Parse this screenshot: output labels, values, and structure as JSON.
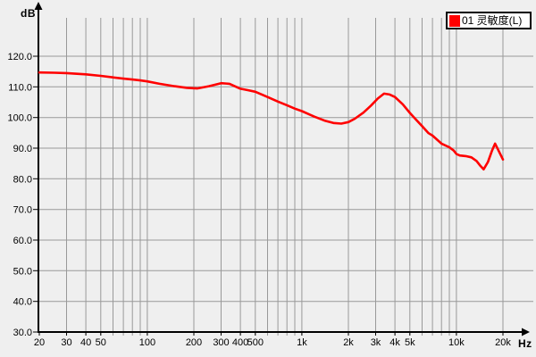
{
  "axis_units": {
    "y": "dB",
    "x": "Hz"
  },
  "legend": {
    "label": "01 灵敏度(L)",
    "swatch_color": "#ff0000"
  },
  "colors": {
    "background": "#efefef",
    "gridline": "#999999",
    "axis": "#000000",
    "curve": "#ff0000",
    "legend_background": "#ffffff",
    "legend_border": "#000000"
  },
  "chart_data": {
    "type": "line",
    "title": "",
    "xlabel": "Hz",
    "ylabel": "dB",
    "x_scale": "log",
    "xlim": [
      20,
      20000
    ],
    "ylim": [
      30,
      125
    ],
    "grid": true,
    "legend_position": "top-right",
    "y_ticks": [
      {
        "v": 120,
        "label": "120.0"
      },
      {
        "v": 110,
        "label": "110.0"
      },
      {
        "v": 100,
        "label": "100.0"
      },
      {
        "v": 90,
        "label": "90.0"
      },
      {
        "v": 80,
        "label": "80.0"
      },
      {
        "v": 70,
        "label": "70.0"
      },
      {
        "v": 60,
        "label": "60.0"
      },
      {
        "v": 50,
        "label": "50.0"
      },
      {
        "v": 40,
        "label": "40.0"
      },
      {
        "v": 30,
        "label": "30.0"
      }
    ],
    "x_ticks": [
      {
        "v": 20,
        "label": "20"
      },
      {
        "v": 30,
        "label": "30"
      },
      {
        "v": 40,
        "label": "40"
      },
      {
        "v": 50,
        "label": "50"
      },
      {
        "v": 100,
        "label": "100"
      },
      {
        "v": 200,
        "label": "200"
      },
      {
        "v": 300,
        "label": "300"
      },
      {
        "v": 400,
        "label": "400"
      },
      {
        "v": 500,
        "label": "500"
      },
      {
        "v": 1000,
        "label": "1k"
      },
      {
        "v": 2000,
        "label": "2k"
      },
      {
        "v": 3000,
        "label": "3k"
      },
      {
        "v": 4000,
        "label": "4k"
      },
      {
        "v": 5000,
        "label": "5k"
      },
      {
        "v": 10000,
        "label": "10k"
      },
      {
        "v": 20000,
        "label": "20k"
      }
    ],
    "x_gridlines": [
      30,
      40,
      50,
      60,
      70,
      80,
      90,
      100,
      200,
      300,
      400,
      500,
      600,
      700,
      800,
      900,
      1000,
      2000,
      3000,
      4000,
      5000,
      6000,
      7000,
      8000,
      9000,
      10000,
      20000
    ],
    "y_gridlines": [
      40,
      50,
      60,
      70,
      80,
      90,
      100,
      110,
      120
    ],
    "series": [
      {
        "name": "01 灵敏度(L)",
        "color": "#ff0000",
        "points": [
          [
            20,
            114.7
          ],
          [
            25,
            114.6
          ],
          [
            30,
            114.5
          ],
          [
            40,
            114.1
          ],
          [
            50,
            113.6
          ],
          [
            60,
            113.1
          ],
          [
            70,
            112.7
          ],
          [
            80,
            112.4
          ],
          [
            90,
            112.1
          ],
          [
            100,
            111.8
          ],
          [
            120,
            111.0
          ],
          [
            150,
            110.2
          ],
          [
            180,
            109.7
          ],
          [
            210,
            109.5
          ],
          [
            250,
            110.2
          ],
          [
            300,
            111.2
          ],
          [
            340,
            111.0
          ],
          [
            400,
            109.4
          ],
          [
            450,
            108.9
          ],
          [
            500,
            108.4
          ],
          [
            600,
            106.7
          ],
          [
            700,
            105.2
          ],
          [
            800,
            104.0
          ],
          [
            900,
            102.9
          ],
          [
            1000,
            102.1
          ],
          [
            1200,
            100.3
          ],
          [
            1400,
            99.0
          ],
          [
            1600,
            98.2
          ],
          [
            1800,
            98.0
          ],
          [
            2000,
            98.5
          ],
          [
            2200,
            99.6
          ],
          [
            2500,
            101.6
          ],
          [
            2800,
            103.9
          ],
          [
            3100,
            106.2
          ],
          [
            3400,
            107.8
          ],
          [
            3700,
            107.5
          ],
          [
            4000,
            106.7
          ],
          [
            4500,
            104.3
          ],
          [
            5000,
            101.5
          ],
          [
            5500,
            99.2
          ],
          [
            6000,
            97.2
          ],
          [
            6600,
            94.9
          ],
          [
            7000,
            94.1
          ],
          [
            8000,
            91.5
          ],
          [
            9000,
            90.3
          ],
          [
            9600,
            89.2
          ],
          [
            10000,
            88.1
          ],
          [
            10500,
            87.6
          ],
          [
            11500,
            87.4
          ],
          [
            12500,
            87.0
          ],
          [
            13500,
            85.8
          ],
          [
            14300,
            84.2
          ],
          [
            15000,
            83.1
          ],
          [
            16000,
            85.5
          ],
          [
            17000,
            89.2
          ],
          [
            17800,
            91.5
          ],
          [
            19000,
            88.6
          ],
          [
            20000,
            86.3
          ]
        ]
      }
    ]
  }
}
